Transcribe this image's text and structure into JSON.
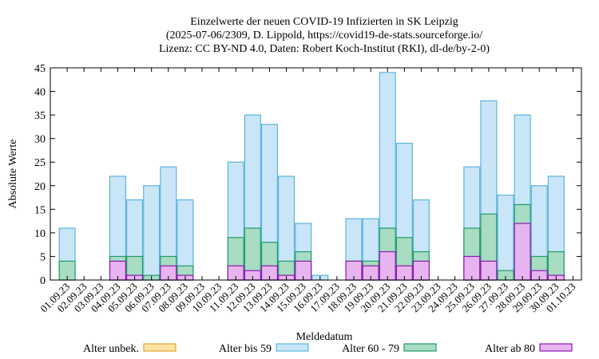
{
  "chart_data": {
    "type": "bar",
    "title_lines": [
      "Einzelwerte der neuen COVID-19 Infizierten in SK Leipzig",
      "(2025-07-06/2309, D. Lippold, https://covid19-de-stats.sourceforge.io/",
      "Lizenz: CC BY-ND 4.0, Daten: Robert Koch-Institut (RKI), dl-de/by-2-0)"
    ],
    "xlabel": "Meldedatum",
    "ylabel": "Absolute Werte",
    "ylim": [
      0,
      45
    ],
    "yticks": [
      0,
      5,
      10,
      15,
      20,
      25,
      30,
      35,
      40,
      45
    ],
    "categories": [
      "01.09.23",
      "02.09.23",
      "03.09.23",
      "04.09.23",
      "05.09.23",
      "06.09.23",
      "07.09.23",
      "08.09.23",
      "09.09.23",
      "10.09.23",
      "11.09.23",
      "12.09.23",
      "13.09.23",
      "14.09.23",
      "15.09.23",
      "16.09.23",
      "17.09.23",
      "18.09.23",
      "19.09.23",
      "20.09.23",
      "21.09.23",
      "22.09.23",
      "23.09.23",
      "24.09.23",
      "25.09.23",
      "26.09.23",
      "27.09.23",
      "28.09.23",
      "29.09.23",
      "30.09.23",
      "01.10.23"
    ],
    "series": [
      {
        "name": "Alter unbek.",
        "color": "#fce3a3",
        "stroke": "#e0a52c",
        "values": [
          0,
          0,
          0,
          0,
          0,
          0,
          0,
          0,
          0,
          0,
          0,
          0,
          0,
          0,
          0,
          0,
          0,
          0,
          0,
          0,
          0,
          0,
          0,
          0,
          0,
          0,
          0,
          0,
          0,
          0,
          0
        ]
      },
      {
        "name": "Alter bis 59",
        "color": "#c9e6f8",
        "stroke": "#5cb3dc",
        "values": [
          11,
          0,
          0,
          22,
          17,
          20,
          24,
          17,
          0,
          0,
          25,
          35,
          33,
          22,
          12,
          1,
          0,
          13,
          13,
          44,
          29,
          17,
          0,
          0,
          24,
          38,
          18,
          35,
          20,
          22,
          0
        ]
      },
      {
        "name": "Alter 60 - 79",
        "color": "#a8dcc3",
        "stroke": "#1f9a6a",
        "values": [
          4,
          0,
          0,
          5,
          5,
          1,
          5,
          3,
          0,
          0,
          9,
          11,
          8,
          4,
          6,
          0,
          0,
          4,
          4,
          11,
          9,
          6,
          0,
          0,
          11,
          14,
          2,
          16,
          5,
          6,
          0
        ]
      },
      {
        "name": "Alter ab 80",
        "color": "#e7b4ef",
        "stroke": "#8a1bb0",
        "values": [
          0,
          0,
          0,
          4,
          1,
          0,
          3,
          1,
          0,
          0,
          3,
          2,
          3,
          1,
          4,
          0,
          0,
          4,
          3,
          6,
          3,
          4,
          0,
          0,
          5,
          4,
          0,
          12,
          2,
          1,
          0
        ]
      }
    ],
    "legend_position": "bottom",
    "grid": false
  }
}
